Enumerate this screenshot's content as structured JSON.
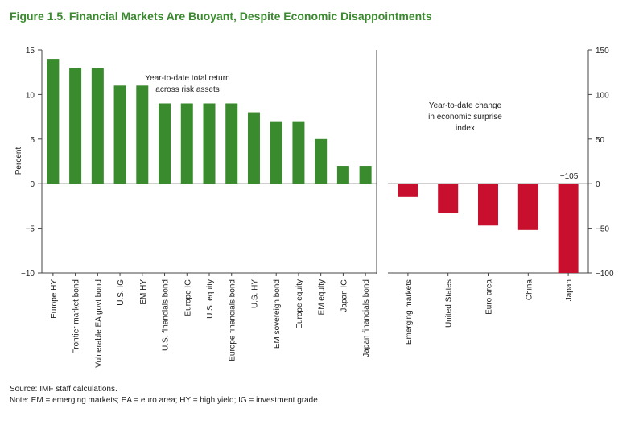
{
  "title": "Figure 1.5. Financial Markets Are Buoyant, Despite Economic Disappointments",
  "source": "Source: IMF staff calculations.",
  "note": "Note: EM = emerging markets; EA = euro area; HY = high yield; IG = investment grade.",
  "colors": {
    "green": "#3a8a2e",
    "red": "#c8102e",
    "title": "#3a8a2e"
  },
  "chart_data": [
    {
      "type": "bar",
      "title": "Year-to-date total return across risk assets",
      "title_lines": [
        "Year-to-date total return",
        "across risk assets"
      ],
      "ylabel": "Percent",
      "ylim": [
        -10,
        15
      ],
      "yticks": [
        -10,
        -5,
        0,
        5,
        10,
        15
      ],
      "ytick_labels": [
        "−10",
        "−5",
        "0",
        "5",
        "10",
        "15"
      ],
      "categories": [
        "Europe HY",
        "Frontier market bond",
        "Vulnerable EA govt bond",
        "U.S. IG",
        "EM HY",
        "U.S. financials bond",
        "Europe IG",
        "U.S. equity",
        "Europe financials bond",
        "U.S. HY",
        "EM sovereign bond",
        "Europe equity",
        "EM equity",
        "Japan IG",
        "Japan financials bond"
      ],
      "values": [
        14,
        13,
        13,
        11,
        11,
        9,
        9,
        9,
        9,
        8,
        7,
        7,
        5,
        2,
        2
      ]
    },
    {
      "type": "bar",
      "title": "Year-to-date change in economic surprise index",
      "title_lines": [
        "Year-to-date change",
        "in economic surprise",
        "index"
      ],
      "ylim": [
        -100,
        150
      ],
      "yticks": [
        -100,
        -50,
        0,
        50,
        100,
        150
      ],
      "ytick_labels": [
        "−100",
        "−50",
        "0",
        "50",
        "100",
        "150"
      ],
      "categories": [
        "Emerging markets",
        "United States",
        "Euro area",
        "China",
        "Japan"
      ],
      "values": [
        -15,
        -33,
        -47,
        -52,
        -105
      ],
      "annotation": "−105"
    }
  ]
}
